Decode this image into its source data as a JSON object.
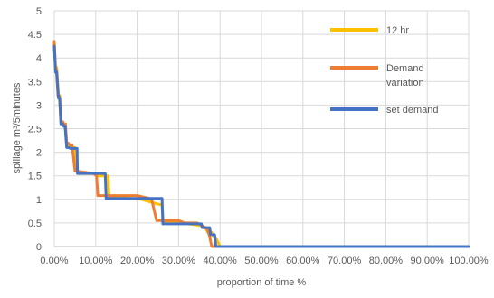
{
  "chart_data": {
    "type": "line",
    "title": "",
    "xlabel": "proportion of time %",
    "ylabel": "spillage m³/5minutes",
    "xlim": [
      0,
      100
    ],
    "ylim": [
      0,
      5
    ],
    "x_ticks": [
      "0.00%",
      "10.00%",
      "20.00%",
      "30.00%",
      "40.00%",
      "50.00%",
      "60.00%",
      "70.00%",
      "80.00%",
      "90.00%",
      "100.00%"
    ],
    "x_tick_values": [
      0,
      10,
      20,
      30,
      40,
      50,
      60,
      70,
      80,
      90,
      100
    ],
    "y_ticks": [
      "0",
      "0.5",
      "1",
      "1.5",
      "2",
      "2.5",
      "3",
      "3.5",
      "4",
      "4.5",
      "5"
    ],
    "y_tick_values": [
      0,
      0.5,
      1,
      1.5,
      2,
      2.5,
      3,
      3.5,
      4,
      4.5,
      5
    ],
    "grid": true,
    "legend_position": "right",
    "series": [
      {
        "name": "12 hr",
        "color": "#FFC000",
        "x": [
          0,
          0.3,
          0.6,
          1,
          1.3,
          1.6,
          2,
          2.3,
          2.6,
          3,
          3.4,
          3.8,
          4.3,
          5,
          5.6,
          6.2,
          9.7,
          10.5,
          13,
          13.2,
          21,
          23,
          25,
          26,
          26.3,
          30.5,
          35,
          36.5,
          37,
          38,
          38.5,
          39.2,
          40,
          100
        ],
        "y": [
          4.3,
          3.8,
          3.8,
          3.2,
          3.2,
          2.65,
          2.65,
          2.6,
          2.6,
          2.15,
          2.15,
          2.1,
          2.1,
          2.1,
          1.55,
          1.55,
          1.55,
          1.5,
          1.5,
          1.05,
          1.0,
          0.95,
          0.9,
          0.88,
          0.5,
          0.5,
          0.45,
          0.4,
          0.3,
          0.3,
          0.2,
          0.15,
          0,
          0
        ]
      },
      {
        "name": "Demand variation",
        "color": "#ED7D31",
        "x": [
          0,
          0.3,
          0.5,
          0.9,
          1.2,
          1.6,
          2,
          2.3,
          2.7,
          3,
          3.3,
          3.8,
          4.3,
          5,
          5.4,
          9.5,
          10.2,
          10.5,
          20,
          21.5,
          22.5,
          23.5,
          24.7,
          25,
          30,
          31.5,
          34.5,
          36.5,
          37,
          37.5,
          38,
          100
        ],
        "y": [
          4.35,
          3.75,
          3.75,
          3.2,
          3.2,
          2.65,
          2.65,
          2.6,
          2.6,
          2.2,
          2.2,
          2.15,
          2.15,
          1.6,
          1.6,
          1.55,
          1.5,
          1.08,
          1.08,
          1.05,
          1.03,
          1.0,
          0.55,
          0.55,
          0.55,
          0.5,
          0.5,
          0.4,
          0.35,
          0.2,
          0,
          0
        ]
      },
      {
        "name": "set demand",
        "color": "#4472C4",
        "x": [
          0,
          0.3,
          0.6,
          1,
          1.3,
          1.6,
          2,
          2.3,
          2.6,
          3,
          3.5,
          3.9,
          5.5,
          5.6,
          12.3,
          12.5,
          26,
          26.2,
          35.5,
          35.7,
          37.5,
          37.7,
          38.7,
          39,
          100
        ],
        "y": [
          4.25,
          3.7,
          3.7,
          3.15,
          3.15,
          2.6,
          2.6,
          2.55,
          2.55,
          2.1,
          2.1,
          2.08,
          2.08,
          1.55,
          1.55,
          1.02,
          1.02,
          0.48,
          0.48,
          0.4,
          0.4,
          0.25,
          0.25,
          0,
          0
        ]
      }
    ]
  }
}
